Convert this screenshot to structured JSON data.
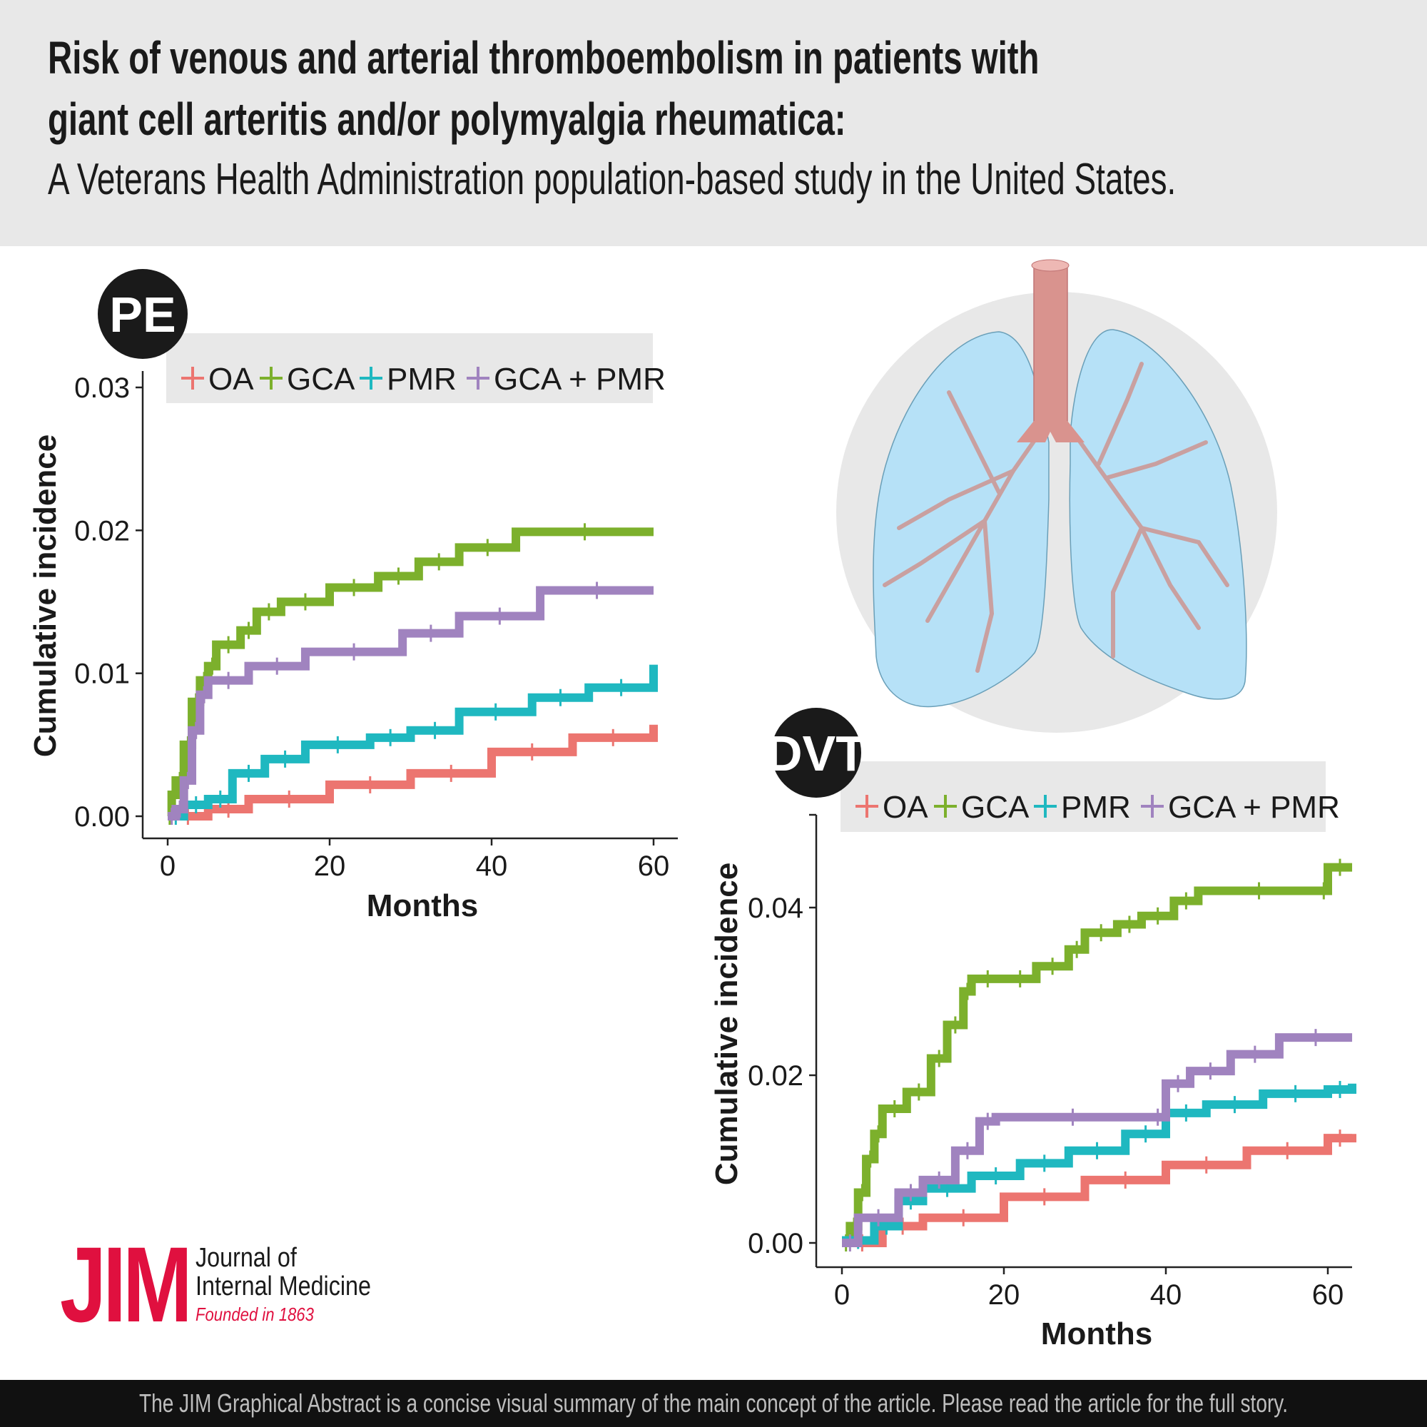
{
  "header": {
    "title_line1": "Risk of venous and arterial thromboembolism in patients with",
    "title_line2": "giant cell arteritis and/or polymyalgia rheumatica:",
    "subtitle": "A Veterans Health Administration population-based study in the United States."
  },
  "footer": {
    "text": "The JIM Graphical Abstract is a concise visual summary of the main concept of the article. Please read the article for the full story."
  },
  "logo": {
    "mark": "JIM",
    "name_line1": "Journal of",
    "name_line2": "Internal Medicine",
    "founded": "Founded in 1863"
  },
  "illustration": {
    "icon": "lungs-icon"
  },
  "chart_data": [
    {
      "type": "line",
      "badge": "PE",
      "xlabel": "Months",
      "ylabel": "Cumulative incidence",
      "xlim": [
        0,
        60
      ],
      "ylim": [
        0,
        0.03
      ],
      "xticks": [
        "0",
        "20",
        "40",
        "60"
      ],
      "yticks": [
        "0.00",
        "0.01",
        "0.02",
        "0.03"
      ],
      "legend_position": "top",
      "grid": false,
      "series": [
        {
          "name": "OA",
          "color": "#ec7570",
          "x": [
            0,
            5,
            10,
            20,
            30,
            40,
            50,
            60
          ],
          "y": [
            0,
            0.0005,
            0.0012,
            0.0022,
            0.003,
            0.0045,
            0.0055,
            0.0064
          ]
        },
        {
          "name": "GCA",
          "color": "#7cb02c",
          "x": [
            0,
            0.5,
            1,
            2,
            3,
            4,
            5,
            6,
            9,
            11,
            14,
            20,
            26,
            31,
            36,
            43,
            60
          ],
          "y": [
            0,
            0.0015,
            0.0025,
            0.005,
            0.008,
            0.0095,
            0.0105,
            0.012,
            0.013,
            0.0143,
            0.015,
            0.016,
            0.0168,
            0.0178,
            0.0188,
            0.0199,
            0.0199
          ]
        },
        {
          "name": "PMR",
          "color": "#1fb8c0",
          "x": [
            0,
            2,
            5,
            8,
            12,
            17,
            25,
            30,
            36,
            45,
            52,
            60
          ],
          "y": [
            0,
            0.0008,
            0.0012,
            0.003,
            0.004,
            0.005,
            0.0055,
            0.006,
            0.0073,
            0.0083,
            0.009,
            0.0106
          ]
        },
        {
          "name": "GCA + PMR",
          "color": "#a083bf",
          "x": [
            0,
            1,
            2,
            3,
            4,
            5,
            10,
            17,
            29,
            36,
            46,
            60
          ],
          "y": [
            0,
            0.0005,
            0.0025,
            0.006,
            0.0085,
            0.0095,
            0.0105,
            0.0115,
            0.0128,
            0.014,
            0.0158,
            0.0158
          ]
        }
      ]
    },
    {
      "type": "line",
      "badge": "DVT",
      "xlabel": "Months",
      "ylabel": "Cumulative incidence",
      "xlim": [
        0,
        63
      ],
      "ylim": [
        0,
        0.04
      ],
      "xticks": [
        "0",
        "20",
        "40",
        "60"
      ],
      "yticks": [
        "0.00",
        "0.02",
        "0.04"
      ],
      "legend_position": "top",
      "grid": false,
      "series": [
        {
          "name": "OA",
          "color": "#ec7570",
          "x": [
            0,
            5,
            10,
            20,
            30,
            40,
            50,
            60,
            63
          ],
          "y": [
            0,
            0.002,
            0.003,
            0.0055,
            0.0075,
            0.0093,
            0.011,
            0.0125,
            0.013
          ]
        },
        {
          "name": "GCA",
          "color": "#7cb02c",
          "x": [
            0,
            1,
            2,
            3,
            4,
            5,
            8,
            11,
            13,
            15,
            16,
            20,
            24,
            28,
            30,
            34,
            37,
            41,
            44,
            59,
            60,
            63
          ],
          "y": [
            0,
            0.002,
            0.006,
            0.01,
            0.013,
            0.016,
            0.018,
            0.022,
            0.026,
            0.03,
            0.0315,
            0.0315,
            0.033,
            0.035,
            0.037,
            0.038,
            0.039,
            0.0408,
            0.042,
            0.042,
            0.0448,
            0.0448
          ]
        },
        {
          "name": "PMR",
          "color": "#1fb8c0",
          "x": [
            0,
            4,
            7,
            10,
            16,
            22,
            28,
            35,
            40,
            45,
            52,
            60,
            63
          ],
          "y": [
            0.0003,
            0.002,
            0.005,
            0.0065,
            0.008,
            0.0095,
            0.011,
            0.013,
            0.0155,
            0.0165,
            0.0178,
            0.0183,
            0.019
          ]
        },
        {
          "name": "GCA + PMR",
          "color": "#a083bf",
          "x": [
            0,
            2,
            7,
            10,
            14,
            17,
            19,
            38,
            40,
            43,
            48,
            54,
            63
          ],
          "y": [
            0,
            0.003,
            0.006,
            0.0075,
            0.011,
            0.0145,
            0.015,
            0.015,
            0.019,
            0.0205,
            0.0225,
            0.0245,
            0.0245
          ]
        }
      ]
    }
  ]
}
